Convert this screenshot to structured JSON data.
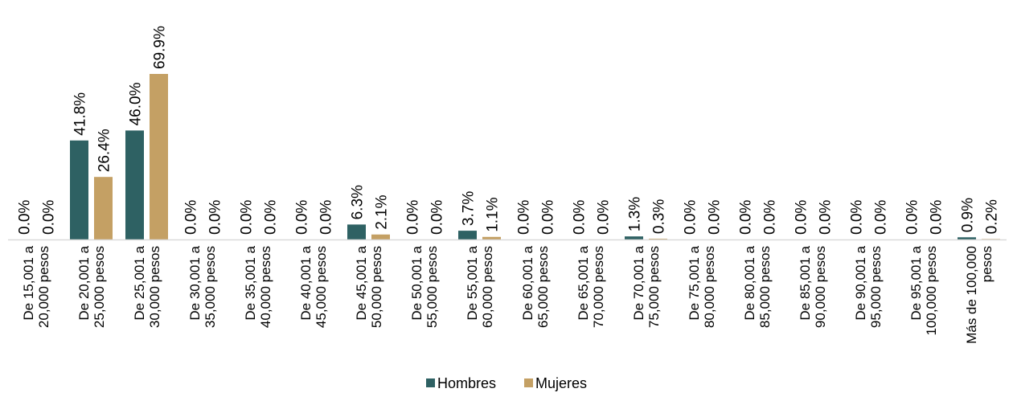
{
  "chart_data": {
    "type": "bar",
    "title": "",
    "xlabel": "",
    "ylabel": "",
    "ylim": [
      0,
      75
    ],
    "grid": false,
    "legend_position": "bottom-center",
    "categories": [
      [
        "De 15,001 a",
        "20,000 pesos"
      ],
      [
        "De 20,001 a",
        "25,000 pesos"
      ],
      [
        "De 25,001 a",
        "30,000 pesos"
      ],
      [
        "De 30,001 a",
        "35,000 pesos"
      ],
      [
        "De 35,001 a",
        "40,000 pesos"
      ],
      [
        "De 40,001 a",
        "45,000 pesos"
      ],
      [
        "De 45,001 a",
        "50,000 pesos"
      ],
      [
        "De 50,001 a",
        "55,000 pesos"
      ],
      [
        "De 55,001 a",
        "60,000 pesos"
      ],
      [
        "De 60,001 a",
        "65,000 pesos"
      ],
      [
        "De 65,001 a",
        "70,000 pesos"
      ],
      [
        "De 70,001 a",
        "75,000 pesos"
      ],
      [
        "De 75,001 a",
        "80,000 pesos"
      ],
      [
        "De 80,001 a",
        "85,000 pesos"
      ],
      [
        "De 85,001 a",
        "90,000 pesos"
      ],
      [
        "De 90,001 a",
        "95,000 pesos"
      ],
      [
        "De 95,001 a",
        "100,000 pesos"
      ],
      [
        "Más de 100,000",
        "pesos"
      ]
    ],
    "series": [
      {
        "name": "Hombres",
        "color": "#2e6163",
        "values": [
          0.0,
          41.8,
          46.0,
          0.0,
          0.0,
          0.0,
          6.3,
          0.0,
          3.7,
          0.0,
          0.0,
          1.3,
          0.0,
          0.0,
          0.0,
          0.0,
          0.0,
          0.9
        ],
        "labels": [
          "0.0%",
          "41.8%",
          "46.0%",
          "0.0%",
          "0.0%",
          "0.0%",
          "6.3%",
          "0.0%",
          "3.7%",
          "0.0%",
          "0.0%",
          "1.3%",
          "0.0%",
          "0.0%",
          "0.0%",
          "0.0%",
          "0.0%",
          "0.9%"
        ]
      },
      {
        "name": "Mujeres",
        "color": "#c4a064",
        "values": [
          0.0,
          26.4,
          69.9,
          0.0,
          0.0,
          0.0,
          2.1,
          0.0,
          1.1,
          0.0,
          0.0,
          0.3,
          0.0,
          0.0,
          0.0,
          0.0,
          0.0,
          0.2
        ],
        "labels": [
          "0.0%",
          "26.4%",
          "69.9%",
          "0.0%",
          "0.0%",
          "0.0%",
          "2.1%",
          "0.0%",
          "1.1%",
          "0.0%",
          "0.0%",
          "0.3%",
          "0.0%",
          "0.0%",
          "0.0%",
          "0.0%",
          "0.0%",
          "0.2%"
        ]
      }
    ],
    "axis_color": "#d9d9d9"
  }
}
